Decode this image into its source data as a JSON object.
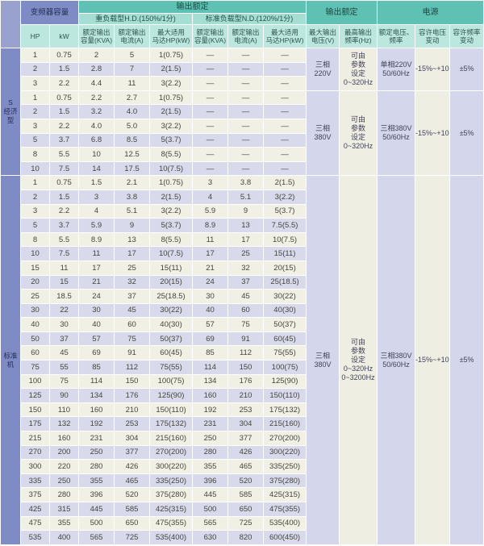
{
  "colors": {
    "header_teal_dark": "#5ec1b3",
    "header_teal_mid": "#a5ded3",
    "header_teal_light": "#bce7de",
    "section_blue": "#7f8bc5",
    "row_cream": "#f1f0e4",
    "row_lavender": "#d8daec"
  },
  "table": {
    "header": {
      "capacity": "变频器容量",
      "output_rating": "输出额定",
      "hd": "重负载型H.D.(150%/1分)",
      "nd": "标准负载型N.D.(120%/1分)",
      "hp": "HP",
      "kw": "kW",
      "rated_capacity": "额定输出\n容量(KVA)",
      "rated_current": "额定输出\n电流(A)",
      "max_motor": "最大适用\n马达HP(kW)",
      "output_rating2": "输出额定",
      "power": "电源",
      "max_voltage": "最大输出\n电压(V)",
      "max_frequency": "最高输出\n频率(Hz)",
      "rated_vf": "额定电压、\n频率",
      "voltage_fluct": "容许电压\n变动",
      "freq_fluct": "容许频率\n变动"
    },
    "sections": [
      {
        "label": "S\n经济型",
        "groups": [
          {
            "output": {
              "max_voltage": "三相\n220V",
              "max_frequency": "可由\n参数\n设定\n0~320Hz"
            },
            "power": {
              "rated_vf": "单相220V\n50/60Hz",
              "voltage_fluct": "-15%~+10%",
              "freq_fluct": "±5%"
            },
            "rows": [
              {
                "hp": "1",
                "kw": "0.75",
                "hd": [
                  "2",
                  "5",
                  "1(0.75)"
                ],
                "nd": [
                  "—",
                  "—",
                  "—"
                ]
              },
              {
                "hp": "2",
                "kw": "1.5",
                "hd": [
                  "2.8",
                  "7",
                  "2(1.5)"
                ],
                "nd": [
                  "—",
                  "—",
                  "—"
                ]
              },
              {
                "hp": "3",
                "kw": "2.2",
                "hd": [
                  "4.4",
                  "11",
                  "3(2.2)"
                ],
                "nd": [
                  "—",
                  "—",
                  "—"
                ]
              }
            ]
          },
          {
            "output": {
              "max_voltage": "三相\n380V",
              "max_frequency": "可由\n参数\n设定\n0~320Hz"
            },
            "power": {
              "rated_vf": "三相380V\n50/60Hz",
              "voltage_fluct": "-15%~+10%",
              "freq_fluct": "±5%"
            },
            "rows": [
              {
                "hp": "1",
                "kw": "0.75",
                "hd": [
                  "2.2",
                  "2.7",
                  "1(0.75)"
                ],
                "nd": [
                  "—",
                  "—",
                  "—"
                ]
              },
              {
                "hp": "2",
                "kw": "1.5",
                "hd": [
                  "3.2",
                  "4.0",
                  "2(1.5)"
                ],
                "nd": [
                  "—",
                  "—",
                  "—"
                ]
              },
              {
                "hp": "3",
                "kw": "2.2",
                "hd": [
                  "4.0",
                  "5.0",
                  "3(2.2)"
                ],
                "nd": [
                  "—",
                  "—",
                  "—"
                ]
              },
              {
                "hp": "5",
                "kw": "3.7",
                "hd": [
                  "6.8",
                  "8.5",
                  "5(3.7)"
                ],
                "nd": [
                  "—",
                  "—",
                  "—"
                ]
              },
              {
                "hp": "8",
                "kw": "5.5",
                "hd": [
                  "10",
                  "12.5",
                  "8(5.5)"
                ],
                "nd": [
                  "—",
                  "—",
                  "—"
                ]
              },
              {
                "hp": "10",
                "kw": "7.5",
                "hd": [
                  "14",
                  "17.5",
                  "10(7.5)"
                ],
                "nd": [
                  "—",
                  "—",
                  "—"
                ]
              }
            ]
          }
        ]
      },
      {
        "label": "标准机",
        "groups": [
          {
            "output": {
              "max_voltage": "三相\n380V",
              "max_frequency": "可由\n参数\n设定\n0~320Hz\n0~3200Hz"
            },
            "power": {
              "rated_vf": "三相380V\n50/60Hz",
              "voltage_fluct": "-15%~+10%",
              "freq_fluct": "±5%"
            },
            "rows": [
              {
                "hp": "1",
                "kw": "0.75",
                "hd": [
                  "1.5",
                  "2.1",
                  "1(0.75)"
                ],
                "nd": [
                  "3",
                  "3.8",
                  "2(1.5)"
                ]
              },
              {
                "hp": "2",
                "kw": "1.5",
                "hd": [
                  "3",
                  "3.8",
                  "2(1.5)"
                ],
                "nd": [
                  "4",
                  "5.1",
                  "3(2.2)"
                ]
              },
              {
                "hp": "3",
                "kw": "2.2",
                "hd": [
                  "4",
                  "5.1",
                  "3(2.2)"
                ],
                "nd": [
                  "5.9",
                  "9",
                  "5(3.7)"
                ]
              },
              {
                "hp": "5",
                "kw": "3.7",
                "hd": [
                  "5.9",
                  "9",
                  "5(3.7)"
                ],
                "nd": [
                  "8.9",
                  "13",
                  "7.5(5.5)"
                ]
              },
              {
                "hp": "8",
                "kw": "5.5",
                "hd": [
                  "8.9",
                  "13",
                  "8(5.5)"
                ],
                "nd": [
                  "11",
                  "17",
                  "10(7.5)"
                ]
              },
              {
                "hp": "10",
                "kw": "7.5",
                "hd": [
                  "11",
                  "17",
                  "10(7.5)"
                ],
                "nd": [
                  "17",
                  "25",
                  "15(11)"
                ]
              },
              {
                "hp": "15",
                "kw": "11",
                "hd": [
                  "17",
                  "25",
                  "15(11)"
                ],
                "nd": [
                  "21",
                  "32",
                  "20(15)"
                ]
              },
              {
                "hp": "20",
                "kw": "15",
                "hd": [
                  "21",
                  "32",
                  "20(15)"
                ],
                "nd": [
                  "24",
                  "37",
                  "25(18.5)"
                ]
              },
              {
                "hp": "25",
                "kw": "18.5",
                "hd": [
                  "24",
                  "37",
                  "25(18.5)"
                ],
                "nd": [
                  "30",
                  "45",
                  "30(22)"
                ]
              },
              {
                "hp": "30",
                "kw": "22",
                "hd": [
                  "30",
                  "45",
                  "30(22)"
                ],
                "nd": [
                  "40",
                  "60",
                  "40(30)"
                ]
              },
              {
                "hp": "40",
                "kw": "30",
                "hd": [
                  "40",
                  "60",
                  "40(30)"
                ],
                "nd": [
                  "57",
                  "75",
                  "50(37)"
                ]
              },
              {
                "hp": "50",
                "kw": "37",
                "hd": [
                  "57",
                  "75",
                  "50(37)"
                ],
                "nd": [
                  "69",
                  "91",
                  "60(45)"
                ]
              },
              {
                "hp": "60",
                "kw": "45",
                "hd": [
                  "69",
                  "91",
                  "60(45)"
                ],
                "nd": [
                  "85",
                  "112",
                  "75(55)"
                ]
              },
              {
                "hp": "75",
                "kw": "55",
                "hd": [
                  "85",
                  "112",
                  "75(55)"
                ],
                "nd": [
                  "114",
                  "150",
                  "100(75)"
                ]
              },
              {
                "hp": "100",
                "kw": "75",
                "hd": [
                  "114",
                  "150",
                  "100(75)"
                ],
                "nd": [
                  "134",
                  "176",
                  "125(90)"
                ]
              },
              {
                "hp": "125",
                "kw": "90",
                "hd": [
                  "134",
                  "176",
                  "125(90)"
                ],
                "nd": [
                  "160",
                  "210",
                  "150(110)"
                ]
              },
              {
                "hp": "150",
                "kw": "110",
                "hd": [
                  "160",
                  "210",
                  "150(110)"
                ],
                "nd": [
                  "192",
                  "253",
                  "175(132)"
                ]
              },
              {
                "hp": "175",
                "kw": "132",
                "hd": [
                  "192",
                  "253",
                  "175(132)"
                ],
                "nd": [
                  "231",
                  "304",
                  "215(160)"
                ]
              },
              {
                "hp": "215",
                "kw": "160",
                "hd": [
                  "231",
                  "304",
                  "215(160)"
                ],
                "nd": [
                  "250",
                  "377",
                  "270(200)"
                ]
              },
              {
                "hp": "270",
                "kw": "200",
                "hd": [
                  "250",
                  "377",
                  "270(200)"
                ],
                "nd": [
                  "280",
                  "426",
                  "300(220)"
                ]
              },
              {
                "hp": "300",
                "kw": "220",
                "hd": [
                  "280",
                  "426",
                  "300(220)"
                ],
                "nd": [
                  "355",
                  "465",
                  "335(250)"
                ]
              },
              {
                "hp": "335",
                "kw": "250",
                "hd": [
                  "355",
                  "465",
                  "335(250)"
                ],
                "nd": [
                  "396",
                  "520",
                  "375(280)"
                ]
              },
              {
                "hp": "375",
                "kw": "280",
                "hd": [
                  "396",
                  "520",
                  "375(280)"
                ],
                "nd": [
                  "445",
                  "585",
                  "425(315)"
                ]
              },
              {
                "hp": "425",
                "kw": "315",
                "hd": [
                  "445",
                  "585",
                  "425(315)"
                ],
                "nd": [
                  "500",
                  "650",
                  "475(355)"
                ]
              },
              {
                "hp": "475",
                "kw": "355",
                "hd": [
                  "500",
                  "650",
                  "475(355)"
                ],
                "nd": [
                  "565",
                  "725",
                  "535(400)"
                ]
              },
              {
                "hp": "535",
                "kw": "400",
                "hd": [
                  "565",
                  "725",
                  "535(400)"
                ],
                "nd": [
                  "630",
                  "820",
                  "600(450)"
                ]
              }
            ]
          }
        ]
      }
    ]
  }
}
